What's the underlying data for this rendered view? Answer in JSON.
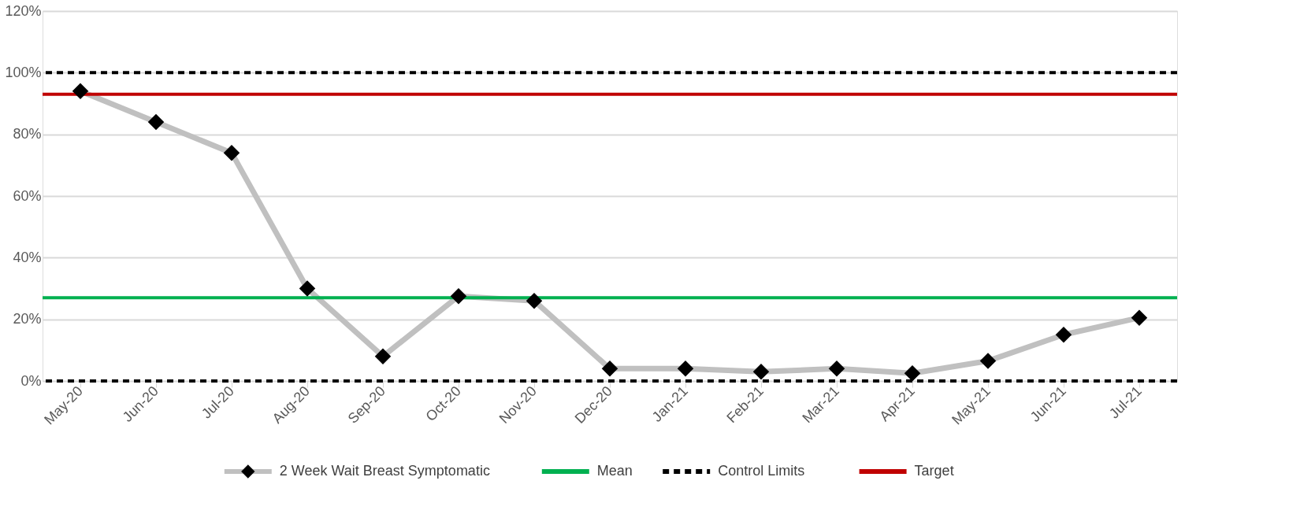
{
  "chart_data": {
    "type": "line",
    "categories": [
      "May-20",
      "Jun-20",
      "Jul-20",
      "Aug-20",
      "Sep-20",
      "Oct-20",
      "Nov-20",
      "Dec-20",
      "Jan-21",
      "Feb-21",
      "Mar-21",
      "Apr-21",
      "May-21",
      "Jun-21",
      "Jul-21"
    ],
    "series": [
      {
        "name": "2 Week Wait Breast Symptomatic",
        "color": "#c0c0c0",
        "values": [
          94,
          84,
          74,
          30,
          8,
          27.5,
          26,
          4,
          4,
          3,
          4,
          2.5,
          6.5,
          15,
          20.5
        ]
      }
    ],
    "ref_lines": [
      {
        "axis": "y",
        "value": 27,
        "label": "Mean",
        "color": "#00b050",
        "line_style": "solid"
      },
      {
        "axis": "y",
        "value": 100,
        "label": "Control Limits",
        "color": "#000000",
        "line_style": "dashed"
      },
      {
        "axis": "y",
        "value": 0,
        "color": "#000000",
        "line_style": "dashed"
      },
      {
        "axis": "y",
        "value": 93,
        "label": "Target",
        "color": "#c00000",
        "line_style": "solid"
      }
    ],
    "ylim": [
      0,
      120
    ],
    "yticks": [
      {
        "value": 0,
        "label": "0%"
      },
      {
        "value": 20,
        "label": "20%"
      },
      {
        "value": 40,
        "label": "40%"
      },
      {
        "value": 60,
        "label": "60%"
      },
      {
        "value": 80,
        "label": "80%"
      },
      {
        "value": 100,
        "label": "100%"
      },
      {
        "value": 120,
        "label": "120%"
      }
    ],
    "grid": "y",
    "legend": "bottom",
    "marker": "diamond",
    "line_style": "solid"
  }
}
